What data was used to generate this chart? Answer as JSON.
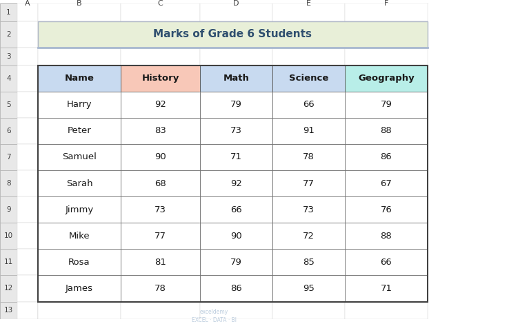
{
  "title": "Marks of Grade 6 Students",
  "title_bg": "#e8efd8",
  "title_border": "#a8b8d0",
  "title_color": "#2f4f6f",
  "columns": [
    "Name",
    "History",
    "Math",
    "Science",
    "Geography"
  ],
  "col_header_colors": [
    "#c8daf0",
    "#f8c8b8",
    "#c8daf0",
    "#c8daf0",
    "#b8eee8"
  ],
  "rows": [
    [
      "Harry",
      92,
      79,
      66,
      79
    ],
    [
      "Peter",
      83,
      73,
      91,
      88
    ],
    [
      "Samuel",
      90,
      71,
      78,
      86
    ],
    [
      "Sarah",
      68,
      92,
      77,
      67
    ],
    [
      "Jimmy",
      73,
      66,
      73,
      76
    ],
    [
      "Mike",
      77,
      90,
      72,
      88
    ],
    [
      "Rosa",
      81,
      79,
      85,
      66
    ],
    [
      "James",
      78,
      86,
      95,
      71
    ]
  ],
  "row_bg": "#ffffff",
  "grid_color": "#808080",
  "excel_bg": "#ffffff",
  "excel_header_bg": "#f0f0f0",
  "excel_header_color": "#404040",
  "col_letters": [
    "A",
    "B",
    "C",
    "D",
    "E",
    "F"
  ],
  "row_numbers": [
    "1",
    "2",
    "3",
    "4",
    "5",
    "6",
    "7",
    "8",
    "9",
    "10",
    "11",
    "12",
    "13"
  ],
  "watermark": "exceldemy\nEXCEL · DATA · BI"
}
